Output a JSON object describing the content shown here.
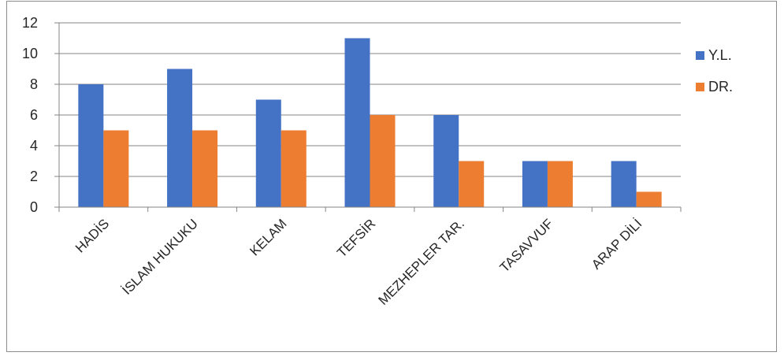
{
  "chart_data": {
    "type": "bar",
    "categories": [
      "HADİS",
      "İSLAM HUKUKU",
      "KELAM",
      "TEFSİR",
      "MEZHEPLER TAR.",
      "TASAVVUF",
      "ARAP DİLİ"
    ],
    "series": [
      {
        "name": "Y.L.",
        "color": "#4472c4",
        "values": [
          8,
          9,
          7,
          11,
          6,
          3,
          3
        ]
      },
      {
        "name": "DR.",
        "color": "#ed7d31",
        "values": [
          5,
          5,
          5,
          6,
          3,
          3,
          1
        ]
      }
    ],
    "y_ticks": [
      "0",
      "2",
      "4",
      "6",
      "8",
      "10",
      "12"
    ],
    "ylim": [
      0,
      12
    ],
    "grid": true,
    "legend_position": "right"
  }
}
